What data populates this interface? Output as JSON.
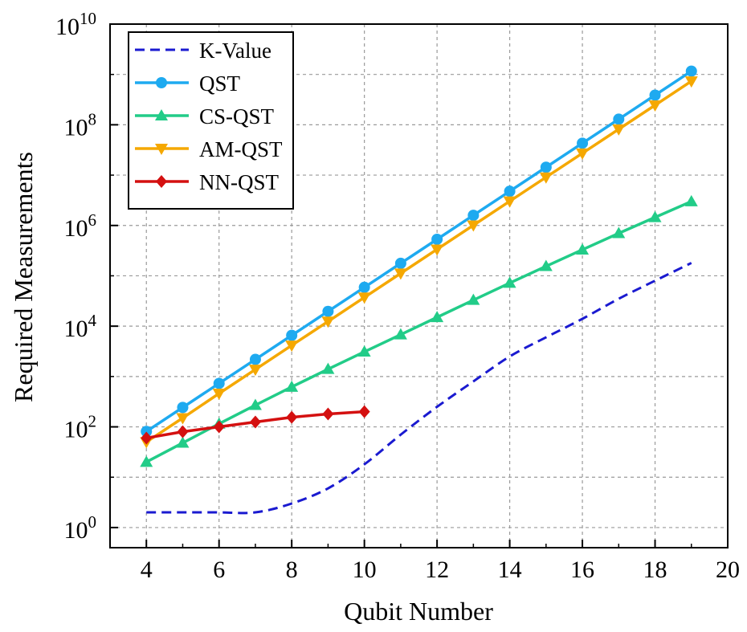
{
  "chart_data": {
    "type": "line",
    "title": "",
    "xlabel": "Qubit Number",
    "ylabel": "Required Measurements",
    "xlim": [
      3,
      20
    ],
    "ylim_log10": [
      -0.4,
      10
    ],
    "yscale": "log",
    "grid": true,
    "legend_position": "top-left",
    "x_ticks": [
      4,
      6,
      8,
      10,
      12,
      14,
      16,
      18,
      20
    ],
    "y_ticks": [
      {
        "base": "10",
        "exp": "0",
        "value": 1
      },
      {
        "base": "10",
        "exp": "2",
        "value": 100
      },
      {
        "base": "10",
        "exp": "4",
        "value": 10000
      },
      {
        "base": "10",
        "exp": "6",
        "value": 1000000
      },
      {
        "base": "10",
        "exp": "8",
        "value": 100000000
      },
      {
        "base": "10",
        "exp": "10",
        "value": 10000000000
      }
    ],
    "series": [
      {
        "name": "K-Value",
        "color": "#1a1ad0",
        "style": "dashed",
        "marker": "none",
        "x": [
          4,
          5,
          6,
          7,
          8,
          9,
          10,
          11,
          12,
          13,
          14,
          15,
          16,
          17,
          18,
          19
        ],
        "values": [
          2,
          2,
          2,
          2,
          3,
          6,
          18,
          70,
          250,
          800,
          2500,
          6000,
          14000,
          35000,
          80000,
          180000
        ]
      },
      {
        "name": "QST",
        "color": "#1eaaf0",
        "style": "solid",
        "marker": "circle",
        "x": [
          4,
          5,
          6,
          7,
          8,
          9,
          10,
          11,
          12,
          13,
          14,
          15,
          16,
          17,
          18,
          19
        ],
        "values": [
          81,
          243,
          729,
          2187,
          6561,
          19683,
          59049,
          177147,
          531441,
          1594323,
          4782969,
          14348907,
          43046721,
          129140163,
          387420489,
          1162261467
        ]
      },
      {
        "name": "CS-QST",
        "color": "#22cc88",
        "style": "solid",
        "marker": "triangle-up",
        "x": [
          4,
          5,
          6,
          7,
          8,
          9,
          10,
          11,
          12,
          13,
          14,
          15,
          16,
          17,
          18,
          19
        ],
        "values": [
          20,
          48,
          115,
          270,
          620,
          1400,
          3100,
          6800,
          15000,
          33000,
          72000,
          155000,
          330000,
          700000,
          1450000,
          3000000
        ]
      },
      {
        "name": "AM-QST",
        "color": "#f5a800",
        "style": "solid",
        "marker": "triangle-down",
        "x": [
          4,
          5,
          6,
          7,
          8,
          9,
          10,
          11,
          12,
          13,
          14,
          15,
          16,
          17,
          18,
          19
        ],
        "values": [
          50,
          150,
          460,
          1380,
          4150,
          12400,
          37300,
          112000,
          336000,
          1010000,
          3030000,
          9080000,
          27200000,
          81700000,
          245000000,
          735000000
        ]
      },
      {
        "name": "NN-QST",
        "color": "#d41010",
        "style": "solid",
        "marker": "diamond",
        "x": [
          4,
          5,
          6,
          7,
          8,
          9,
          10
        ],
        "values": [
          60,
          80,
          100,
          125,
          155,
          180,
          200
        ]
      }
    ]
  }
}
